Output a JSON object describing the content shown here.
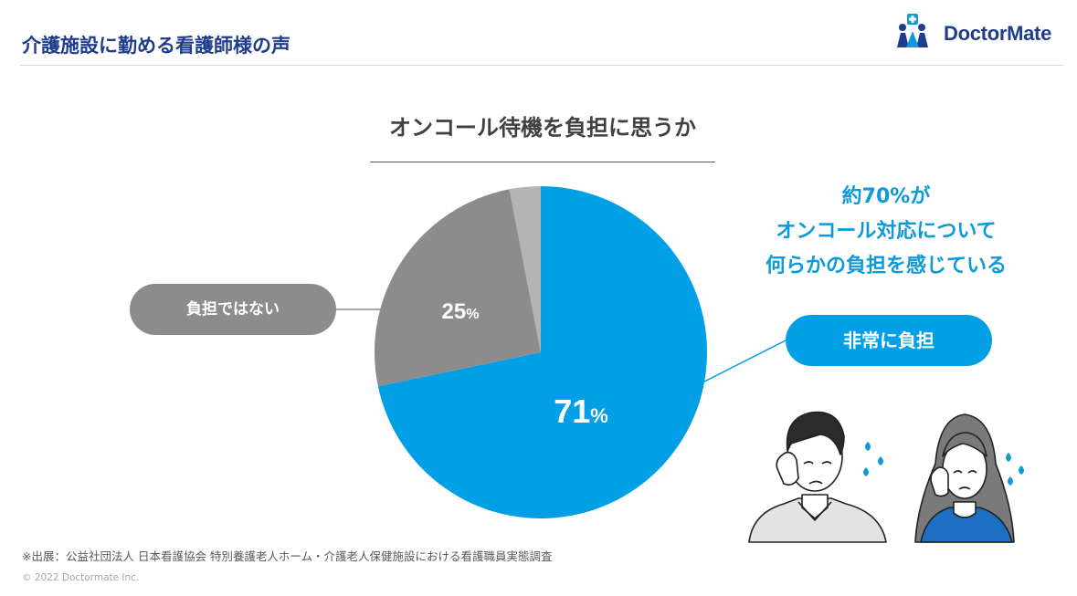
{
  "header": {
    "title": "介護施設に勤める看護師様の声",
    "logo_text": "DoctorMate"
  },
  "chart_data": {
    "type": "pie",
    "title": "オンコール待機を負担に思うか",
    "slices": [
      {
        "label": "非常に負担",
        "value": 71,
        "display": "71",
        "color": "#019fe6"
      },
      {
        "label": "負担ではない",
        "value": 25,
        "display": "25",
        "color": "#8c8c8c"
      },
      {
        "label": "",
        "value": 3,
        "display": "",
        "color": "#b4b4b4"
      }
    ],
    "unit": "%",
    "start_angle_deg": 0,
    "direction": "clockwise"
  },
  "labels": {
    "not_burden": "負担ではない",
    "very_burden": "非常に負担"
  },
  "callout": {
    "line1": "約70%が",
    "line2": "オンコール対応について",
    "line3": "何らかの負担を感じている"
  },
  "footer": {
    "source": "※出展：公益社団法人 日本看護協会 特別養護老人ホーム・介護老人保健施設における看護職員実態調査",
    "copyright": "© 2022 Doctormate Inc."
  }
}
